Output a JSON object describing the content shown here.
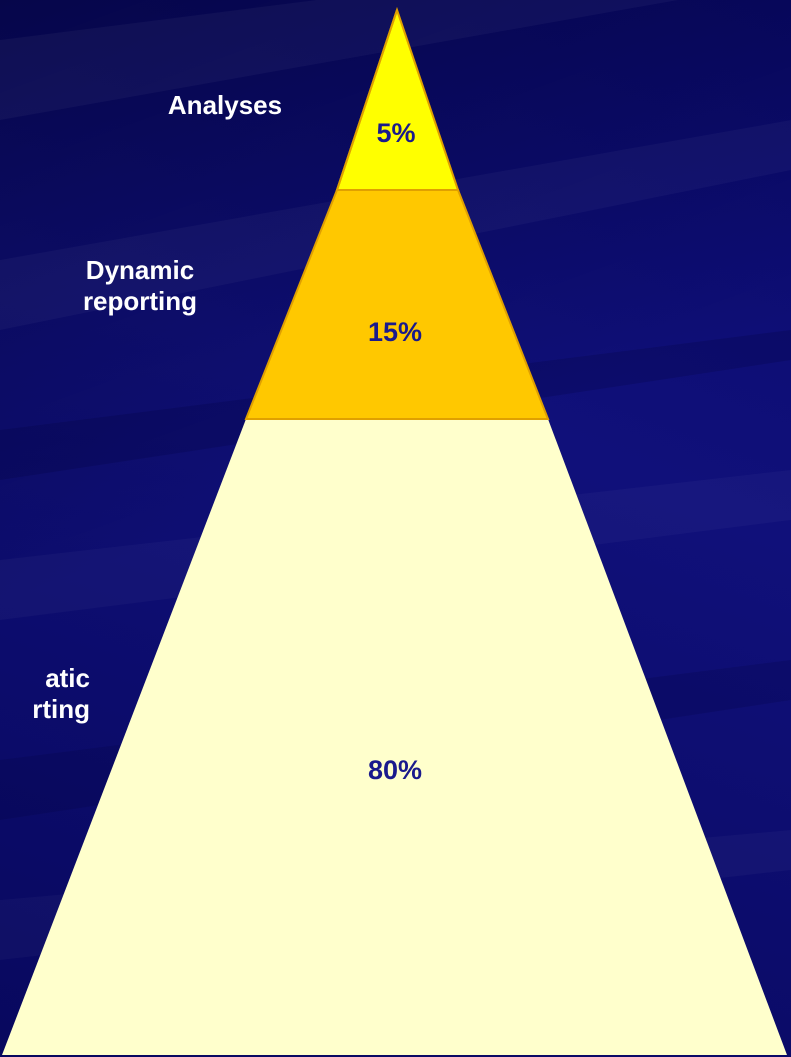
{
  "colors": {
    "background": "#0a0a6e",
    "top_tier": "#ffff00",
    "middle_tier": "#ffc800",
    "bottom_tier": "#ffffcc",
    "tier_outline": "#e0a000",
    "label_text": "#ffffff",
    "percent_text": "#1a1a8c"
  },
  "tiers": [
    {
      "label": "Analyses",
      "percent": "5%"
    },
    {
      "label": "Dynamic\nreporting",
      "percent": "15%"
    },
    {
      "label": "atic\nrting",
      "percent": "80%"
    }
  ]
}
